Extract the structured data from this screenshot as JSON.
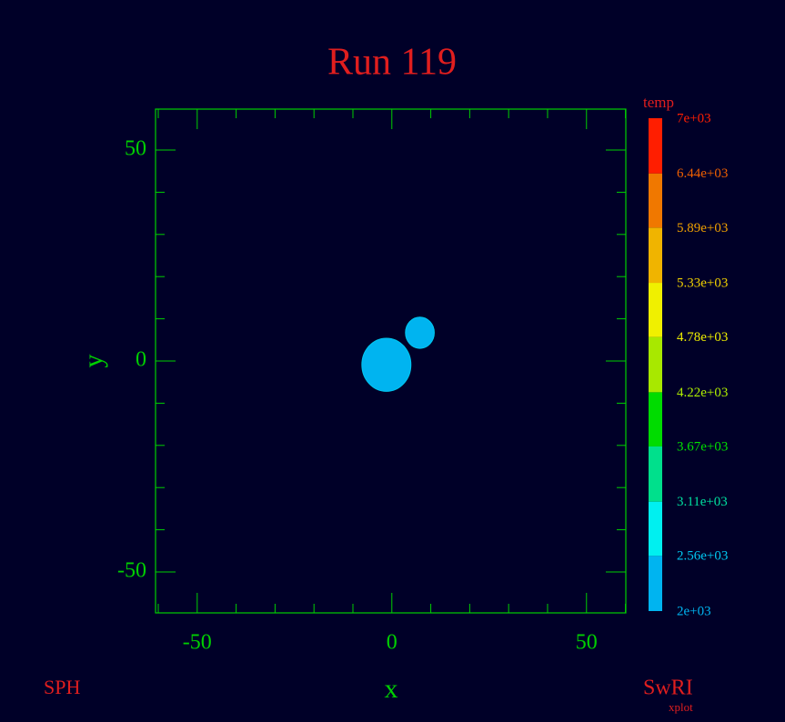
{
  "chart_data": {
    "type": "scatter",
    "title": "Run 119",
    "xlabel": "x",
    "ylabel": "y",
    "footer_left": "SPH",
    "footer_right": "SwRI",
    "footer_right_sub": "xplot",
    "xlim": [
      -60.7,
      60.1
    ],
    "ylim": [
      -59.7,
      59.7
    ],
    "xticks": [
      -50,
      0,
      50
    ],
    "yticks": [
      -50,
      0,
      50
    ],
    "xminorticks": [
      -60,
      -40,
      -30,
      -20,
      -10,
      10,
      20,
      30,
      40,
      60
    ],
    "yminorticks": [
      -40,
      -30,
      -20,
      -10,
      10,
      20,
      30,
      40
    ],
    "axis_color": "#00d000",
    "series": [
      {
        "color": "#00b4f0",
        "x": [
          -1.4,
          7.2
        ],
        "y": [
          -0.9,
          6.7
        ],
        "radius": [
          6.3,
          3.7
        ]
      }
    ],
    "colorbar": {
      "label": "temp",
      "ticks": [
        {
          "value": 2000,
          "label": "2e+03"
        },
        {
          "value": 2560,
          "label": "2.56e+03"
        },
        {
          "value": 3110,
          "label": "3.11e+03"
        },
        {
          "value": 3670,
          "label": "3.67e+03"
        },
        {
          "value": 4220,
          "label": "4.22e+03"
        },
        {
          "value": 4780,
          "label": "4.78e+03"
        },
        {
          "value": 5330,
          "label": "5.33e+03"
        },
        {
          "value": 5890,
          "label": "5.89e+03"
        },
        {
          "value": 6440,
          "label": "6.44e+03"
        },
        {
          "value": 7000,
          "label": "7e+03"
        }
      ],
      "colors": [
        "#00b4f0",
        "#00f0f0",
        "#00e08c",
        "#00dc00",
        "#a8e800",
        "#f0f000",
        "#f0b400",
        "#f07800",
        "#ff1e00"
      ],
      "label_colors": [
        "#00b4f0",
        "#00c8f0",
        "#00e0a0",
        "#00e000",
        "#b0f000",
        "#f0f000",
        "#f0d000",
        "#f0a000",
        "#f06000",
        "#ff1e00"
      ]
    }
  }
}
